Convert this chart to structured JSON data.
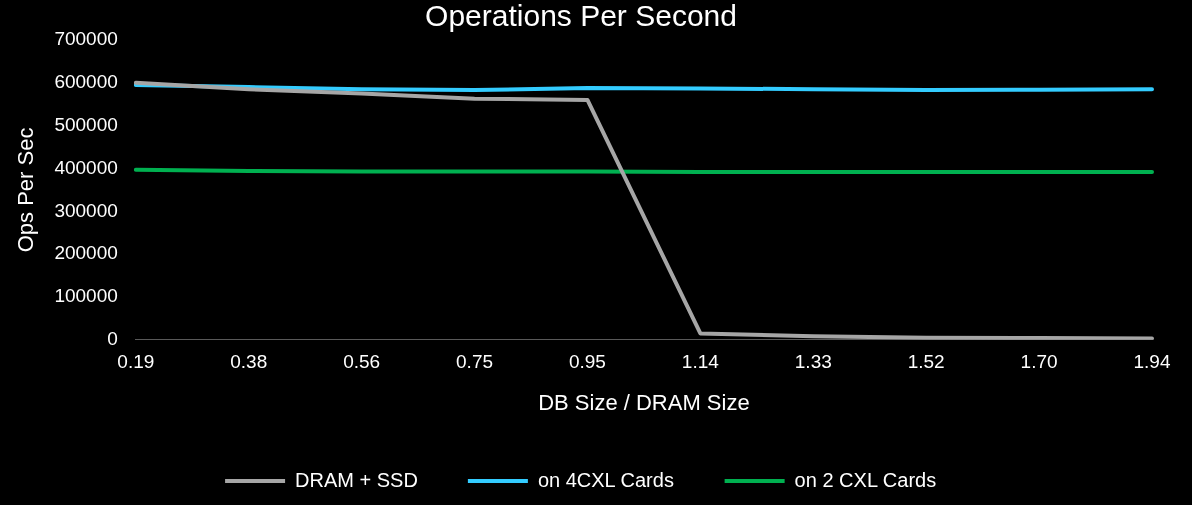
{
  "chart_data": {
    "type": "line",
    "title": "Operations Per Second",
    "xlabel": "DB Size / DRAM Size",
    "ylabel": "Ops Per Sec",
    "categories": [
      "0.19",
      "0.38",
      "0.56",
      "0.75",
      "0.95",
      "1.14",
      "1.33",
      "1.52",
      "1.70",
      "1.94"
    ],
    "series": [
      {
        "name": "DRAM + SSD",
        "color": "#a6a6a6",
        "values": [
          600000,
          585000,
          575000,
          563000,
          560000,
          15000,
          8000,
          5000,
          4000,
          3000
        ]
      },
      {
        "name": "on 4CXL Cards",
        "color": "#33ccff",
        "values": [
          595000,
          590000,
          585000,
          583000,
          588000,
          587000,
          585000,
          583000,
          584000,
          585000
        ]
      },
      {
        "name": "on 2 CXL Cards",
        "color": "#00b050",
        "values": [
          397000,
          394000,
          393000,
          393000,
          393000,
          392000,
          392000,
          392000,
          392000,
          392000
        ]
      }
    ],
    "ylim": [
      0,
      700000
    ],
    "yticks": [
      0,
      100000,
      200000,
      300000,
      400000,
      500000,
      600000,
      700000
    ],
    "grid": false,
    "legend": "bottom",
    "marker": "none",
    "line_style": "solid"
  }
}
